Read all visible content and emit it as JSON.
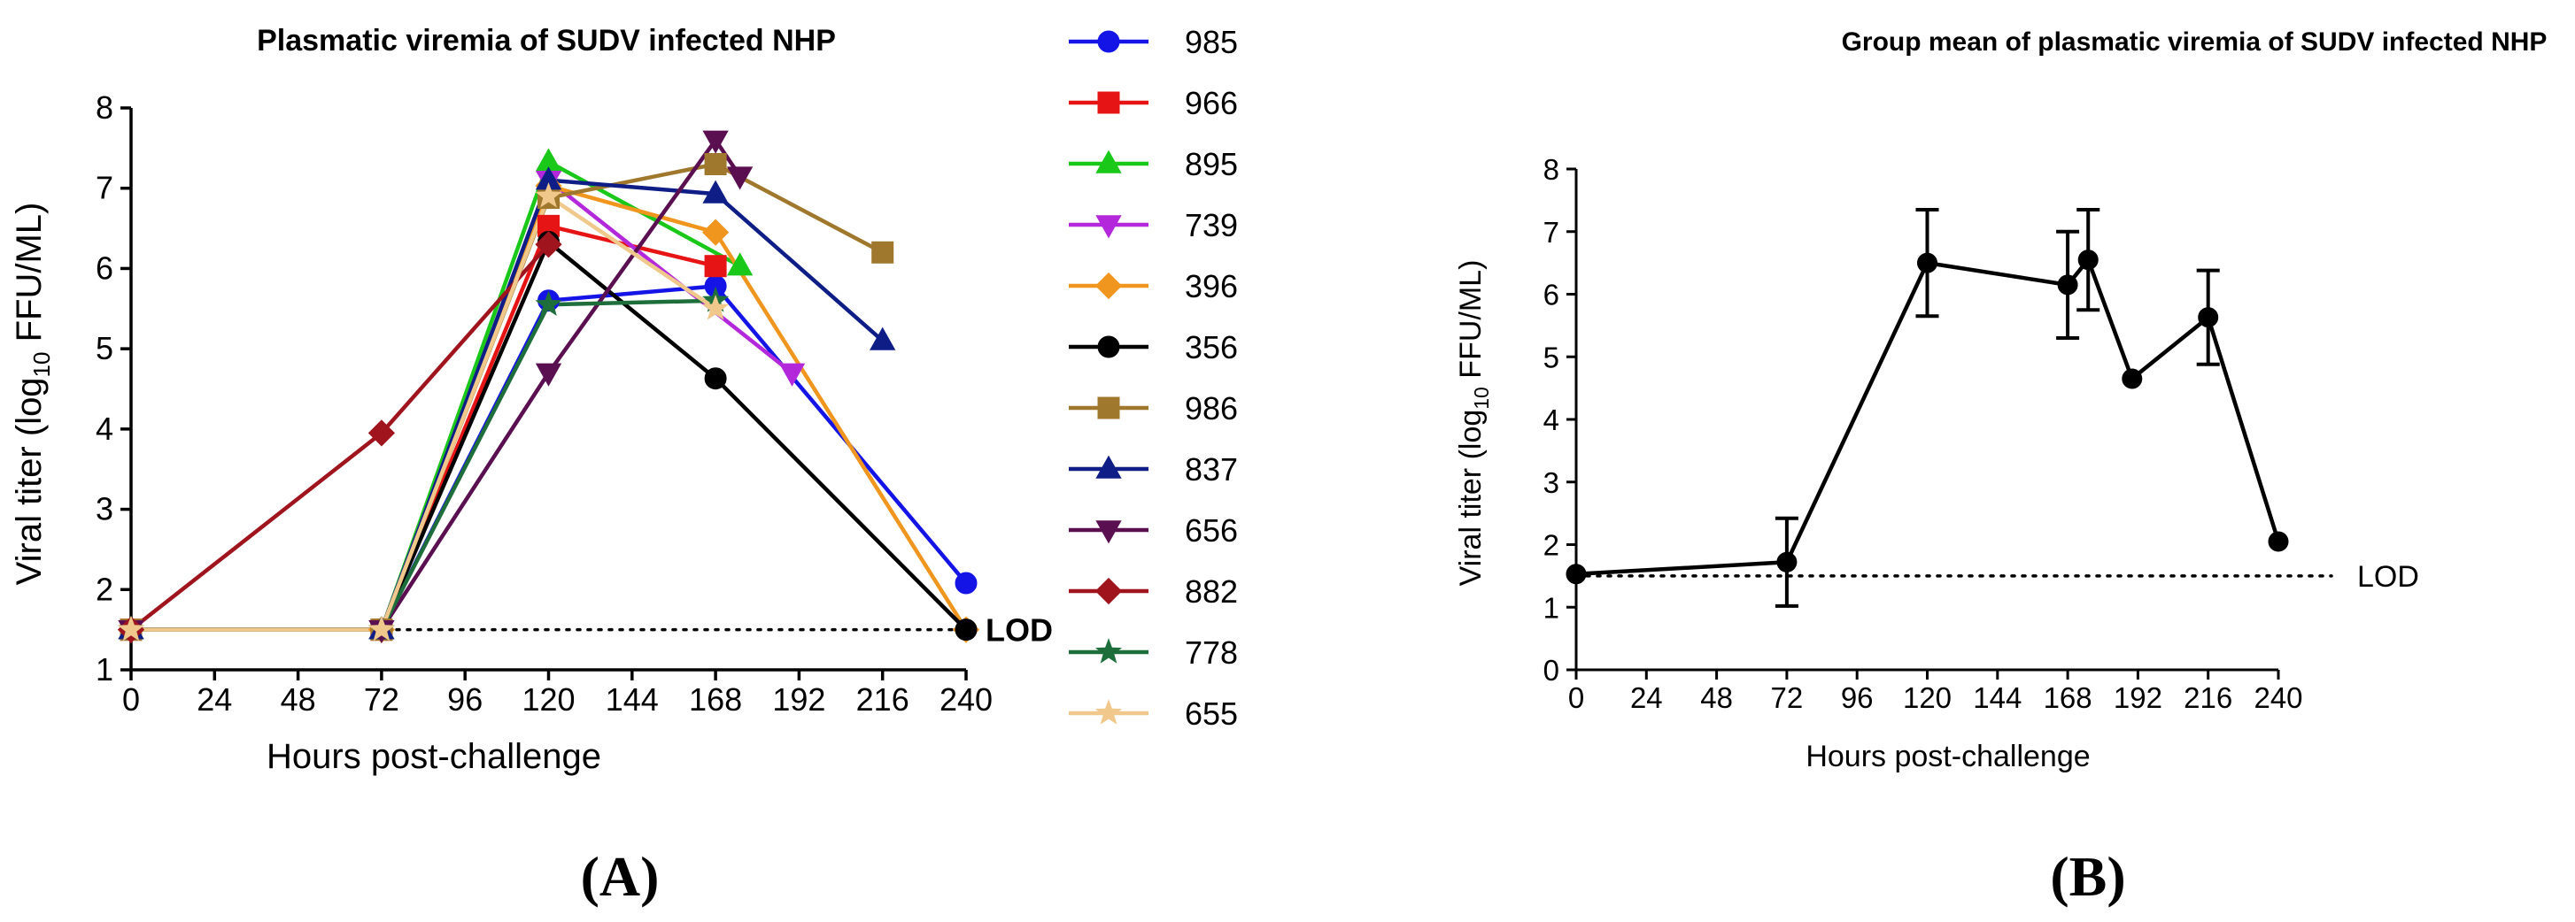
{
  "figure": {
    "label_a": "(A)",
    "label_b": "(B)"
  },
  "chart_data": [
    {
      "type": "line",
      "title": "Plasmatic viremia of SUDV infected NHP",
      "xlabel": "Hours post-challenge",
      "ylabel_pre": "Viral titer (log",
      "ylabel_sub": "10",
      "ylabel_post": " FFU/ML)",
      "xlim": [
        0,
        240
      ],
      "ylim": [
        1,
        8
      ],
      "xticks": [
        0,
        24,
        48,
        72,
        96,
        120,
        144,
        168,
        192,
        216,
        240
      ],
      "yticks": [
        1,
        2,
        3,
        4,
        5,
        6,
        7,
        8
      ],
      "grid": false,
      "legend_position": "right",
      "lod": {
        "value": 1.5,
        "label": "LOD"
      },
      "series": [
        {
          "name": "985",
          "color": "#1414e6",
          "marker": "circle",
          "points": [
            [
              0,
              1.5
            ],
            [
              72,
              1.5
            ],
            [
              120,
              5.6
            ],
            [
              168,
              5.78
            ],
            [
              240,
              2.08
            ]
          ]
        },
        {
          "name": "966",
          "color": "#e61414",
          "marker": "square",
          "points": [
            [
              0,
              1.5
            ],
            [
              72,
              1.5
            ],
            [
              120,
              6.53
            ],
            [
              168,
              6.03
            ]
          ]
        },
        {
          "name": "895",
          "color": "#19c819",
          "marker": "triangle-up",
          "points": [
            [
              0,
              1.5
            ],
            [
              72,
              1.5
            ],
            [
              120,
              7.33
            ],
            [
              175,
              6.03
            ]
          ]
        },
        {
          "name": "739",
          "color": "#b428dc",
          "marker": "triangle-down",
          "points": [
            [
              0,
              1.5
            ],
            [
              72,
              1.5
            ],
            [
              120,
              7.1
            ],
            [
              190,
              4.7
            ]
          ]
        },
        {
          "name": "396",
          "color": "#f0961e",
          "marker": "diamond",
          "points": [
            [
              0,
              1.5
            ],
            [
              72,
              1.5
            ],
            [
              120,
              7.03
            ],
            [
              168,
              6.45
            ],
            [
              240,
              1.5
            ]
          ]
        },
        {
          "name": "356",
          "color": "#000000",
          "marker": "circle",
          "points": [
            [
              0,
              1.5
            ],
            [
              72,
              1.5
            ],
            [
              120,
              6.33
            ],
            [
              168,
              4.63
            ],
            [
              240,
              1.5
            ]
          ]
        },
        {
          "name": "986",
          "color": "#a0782d",
          "marker": "square",
          "points": [
            [
              0,
              1.5
            ],
            [
              72,
              1.5
            ],
            [
              120,
              6.88
            ],
            [
              168,
              7.3
            ],
            [
              216,
              6.2
            ]
          ]
        },
        {
          "name": "837",
          "color": "#0f1e87",
          "marker": "triangle-up",
          "points": [
            [
              0,
              1.5
            ],
            [
              72,
              1.5
            ],
            [
              120,
              7.1
            ],
            [
              168,
              6.93
            ],
            [
              216,
              5.1
            ]
          ]
        },
        {
          "name": "656",
          "color": "#5a0f50",
          "marker": "triangle-down",
          "points": [
            [
              0,
              1.5
            ],
            [
              72,
              1.5
            ],
            [
              120,
              4.7
            ],
            [
              168,
              7.6
            ],
            [
              175,
              7.15
            ]
          ]
        },
        {
          "name": "882",
          "color": "#a0141e",
          "marker": "diamond",
          "points": [
            [
              0,
              1.5
            ],
            [
              72,
              3.95
            ],
            [
              120,
              6.3
            ]
          ]
        },
        {
          "name": "778",
          "color": "#1e6e3c",
          "marker": "star",
          "points": [
            [
              0,
              1.5
            ],
            [
              72,
              1.5
            ],
            [
              120,
              5.55
            ],
            [
              168,
              5.6
            ]
          ]
        },
        {
          "name": "655",
          "color": "#f0c88c",
          "marker": "star",
          "points": [
            [
              0,
              1.5
            ],
            [
              72,
              1.5
            ],
            [
              120,
              6.9
            ],
            [
              168,
              5.5
            ]
          ]
        }
      ]
    },
    {
      "type": "line",
      "title": "Group mean of plasmatic viremia of SUDV infected NHP",
      "xlabel": "Hours post-challenge",
      "ylabel_pre": "Viral titer (log",
      "ylabel_sub": "10",
      "ylabel_post": " FFU/ML)",
      "xlim": [
        0,
        240
      ],
      "ylim": [
        0,
        8
      ],
      "xticks": [
        0,
        24,
        48,
        72,
        96,
        120,
        144,
        168,
        192,
        216,
        240
      ],
      "yticks": [
        0,
        1,
        2,
        3,
        4,
        5,
        6,
        7,
        8
      ],
      "grid": false,
      "lod": {
        "value": 1.5,
        "label": "LOD"
      },
      "series": [
        {
          "color": "#000000",
          "marker": "circle",
          "points": [
            [
              0,
              1.53
            ],
            [
              72,
              1.72
            ],
            [
              120,
              6.5
            ],
            [
              168,
              6.15
            ],
            [
              175,
              6.55
            ],
            [
              190,
              4.65
            ],
            [
              216,
              5.63
            ],
            [
              240,
              2.05
            ]
          ],
          "error": [
            0,
            0.7,
            0.85,
            0.85,
            0.8,
            0,
            0.75,
            0
          ]
        }
      ]
    }
  ]
}
